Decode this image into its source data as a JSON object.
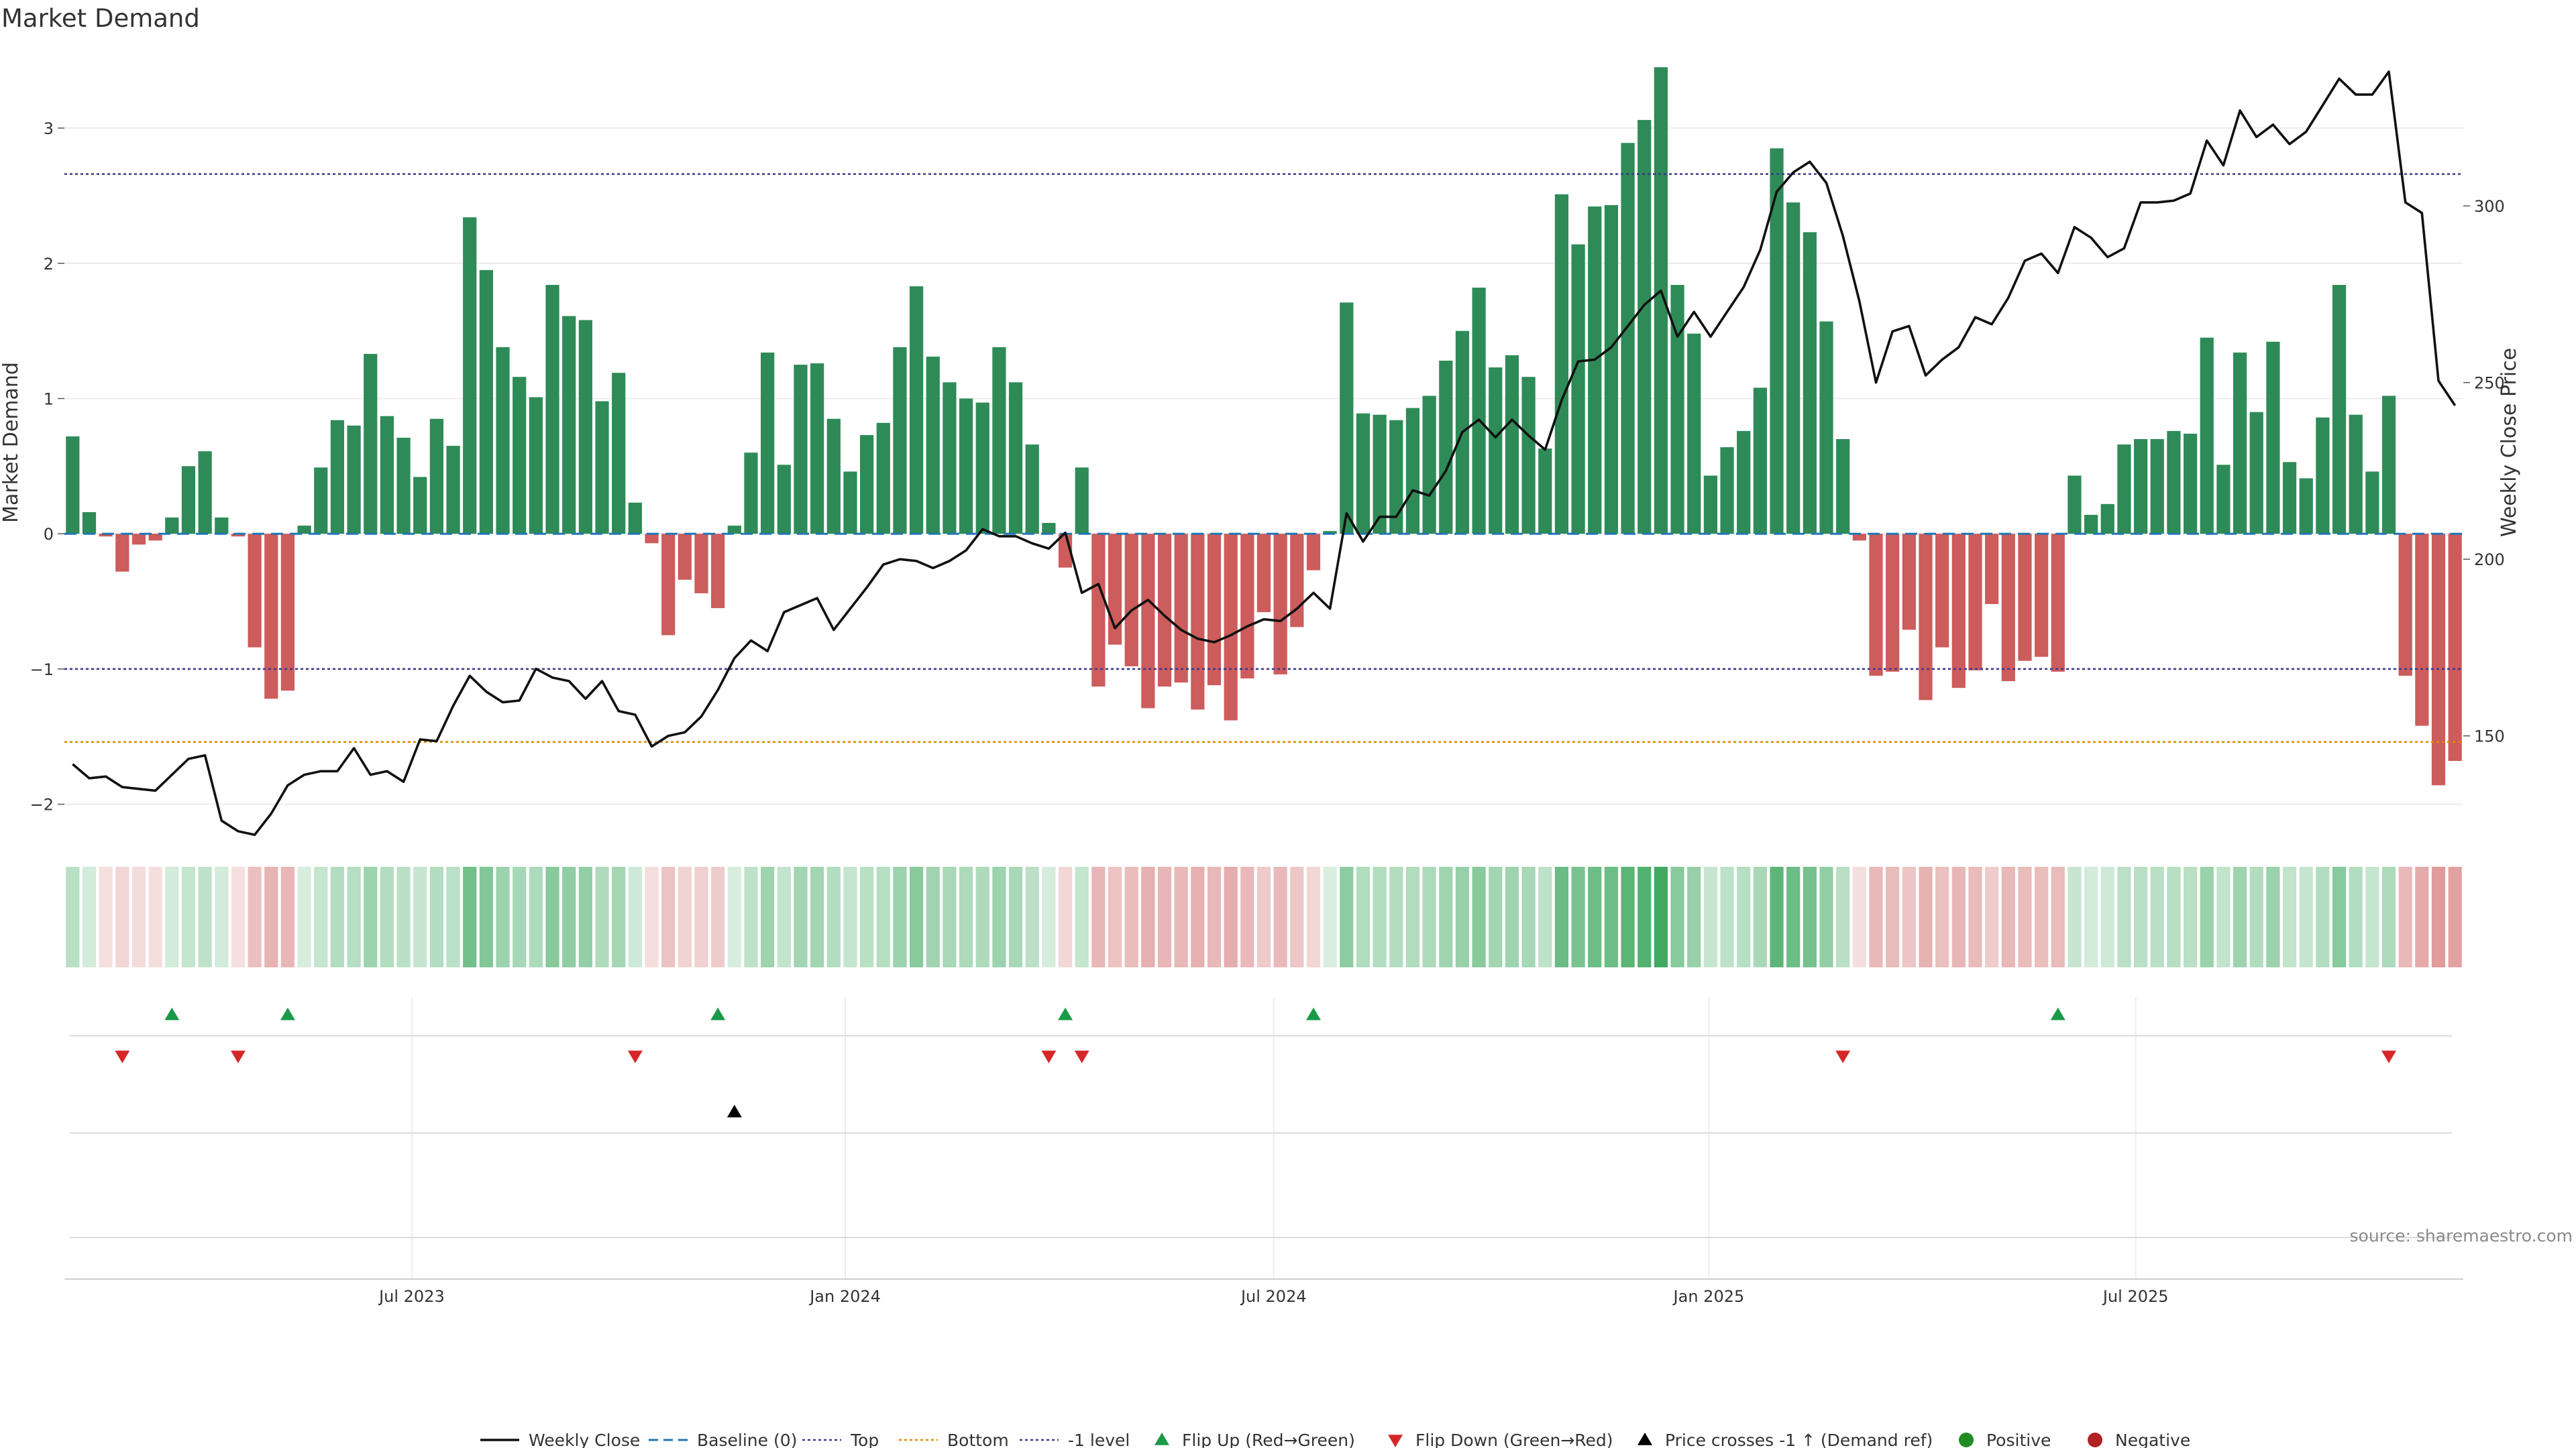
{
  "chart_data": {
    "type": "bar",
    "title": "Market Demand",
    "ylabel": "Market Demand",
    "y2label": "Weekly Close Price",
    "source": "source: sharemaestro.com",
    "ylim": [
      -2.2,
      3.6
    ],
    "y2lim": [
      123,
      345
    ],
    "y_ticks": [
      {
        "v": 3,
        "t": "3"
      },
      {
        "v": 2,
        "t": "2"
      },
      {
        "v": 1,
        "t": "1"
      },
      {
        "v": 0,
        "t": "0"
      },
      {
        "v": -1,
        "t": "−1"
      },
      {
        "v": -2,
        "t": "−2"
      }
    ],
    "y2_ticks": [
      {
        "v": 300,
        "t": "300"
      },
      {
        "v": 250,
        "t": "250"
      },
      {
        "v": 200,
        "t": "200"
      },
      {
        "v": 150,
        "t": "150"
      }
    ],
    "x_ticks": [
      {
        "i": 20.5,
        "t": "Jul 2023"
      },
      {
        "i": 46.7,
        "t": "Jan 2024"
      },
      {
        "i": 72.6,
        "t": "Jul 2024"
      },
      {
        "i": 98.9,
        "t": "Jan 2025"
      },
      {
        "i": 124.7,
        "t": "Jul 2025"
      }
    ],
    "levels": {
      "baseline": 0,
      "top": 2.66,
      "bottom": -1.54,
      "minus_one": -1
    },
    "demand": [
      0.72,
      0.16,
      -0.02,
      -0.28,
      -0.08,
      -0.05,
      0.12,
      0.5,
      0.61,
      0.12,
      -0.02,
      -0.84,
      -1.22,
      -1.16,
      0.06,
      0.49,
      0.84,
      0.8,
      1.33,
      0.87,
      0.71,
      0.42,
      0.85,
      0.65,
      2.34,
      1.95,
      1.38,
      1.16,
      1.01,
      1.84,
      1.61,
      1.58,
      0.98,
      1.19,
      0.23,
      -0.07,
      -0.75,
      -0.34,
      -0.44,
      -0.55,
      0.06,
      0.6,
      1.34,
      0.51,
      1.25,
      1.26,
      0.85,
      0.46,
      0.73,
      0.82,
      1.38,
      1.83,
      1.31,
      1.12,
      1.0,
      0.97,
      1.38,
      1.12,
      0.66,
      0.08,
      -0.25,
      0.49,
      -1.13,
      -0.82,
      -0.98,
      -1.29,
      -1.13,
      -1.1,
      -1.3,
      -1.12,
      -1.38,
      -1.07,
      -0.58,
      -1.04,
      -0.69,
      -0.27,
      0.02,
      1.71,
      0.89,
      0.88,
      0.84,
      0.93,
      1.02,
      1.28,
      1.5,
      1.82,
      1.23,
      1.32,
      1.16,
      0.63,
      2.51,
      2.14,
      2.42,
      2.43,
      2.89,
      3.06,
      3.45,
      1.84,
      1.48,
      0.43,
      0.64,
      0.76,
      1.08,
      2.85,
      2.45,
      2.23,
      1.57,
      0.7,
      -0.05,
      -1.05,
      -1.02,
      -0.71,
      -1.23,
      -0.84,
      -1.14,
      -1.01,
      -0.52,
      -1.09,
      -0.94,
      -0.91,
      -1.02,
      0.43,
      0.14,
      0.22,
      0.66,
      0.7,
      0.7,
      0.76,
      0.74,
      1.45,
      0.51,
      1.34,
      0.9,
      1.42,
      0.53,
      0.41,
      0.86,
      1.84,
      0.88,
      0.46,
      1.02,
      -1.05,
      -1.42,
      -1.86,
      -1.68
    ],
    "weekly_close": [
      142,
      138,
      138.5,
      135.5,
      135,
      134.5,
      139,
      143.5,
      144.5,
      126,
      123,
      122,
      128,
      136,
      139,
      140,
      140,
      146.5,
      139,
      140,
      137,
      149,
      148.5,
      158.5,
      167,
      162.5,
      159.5,
      160,
      169,
      166.5,
      165.5,
      160.5,
      165.5,
      157,
      156,
      147,
      150,
      151,
      155.5,
      163,
      172,
      177,
      174,
      185,
      187,
      189,
      180,
      186,
      192,
      198.5,
      200,
      199.5,
      197.5,
      199.5,
      202.5,
      208.5,
      206.5,
      206.5,
      204.5,
      203,
      207.5,
      190.5,
      193,
      180.5,
      185.5,
      188.5,
      184,
      180,
      177.5,
      176.5,
      178.5,
      181,
      183,
      182.5,
      186,
      190.5,
      186,
      213,
      205,
      212,
      212,
      219.5,
      218,
      225,
      236,
      239.5,
      234.5,
      239.5,
      235,
      231,
      245,
      256,
      256.5,
      260,
      266,
      272,
      276,
      263,
      270,
      263,
      270,
      277,
      287.5,
      304,
      309.5,
      312.5,
      306.5,
      291.5,
      273,
      250,
      264.5,
      266,
      252,
      256.5,
      260,
      268.5,
      266.5,
      274,
      284.5,
      286.5,
      281,
      294,
      291,
      285.5,
      288,
      301,
      301,
      301.5,
      303.5,
      318.5,
      311.5,
      327,
      319.5,
      323,
      317.5,
      321,
      328.5,
      336,
      331.5,
      331.5,
      338,
      301,
      298,
      250.5,
      243.5
    ],
    "flip_up": [
      6,
      13,
      39,
      60,
      75,
      120
    ],
    "flip_down": [
      3,
      10,
      34,
      59,
      61,
      107,
      140
    ],
    "price_cross": [
      40
    ]
  },
  "legend": [
    {
      "label": "Weekly Close",
      "icon": "line-solid-black"
    },
    {
      "label": "Baseline (0)",
      "icon": "line-dashed-blue"
    },
    {
      "label": "Top",
      "icon": "line-dotted-purple"
    },
    {
      "label": "Bottom",
      "icon": "line-dotted-orange"
    },
    {
      "label": "-1 level",
      "icon": "line-dotted-purple"
    },
    {
      "label": "Flip Up (Red→Green)",
      "icon": "triangle-up-green"
    },
    {
      "label": "Flip Down (Green→Red)",
      "icon": "triangle-down-red"
    },
    {
      "label": "Price crosses -1 ↑ (Demand ref)",
      "icon": "triangle-up-black"
    },
    {
      "label": "Positive",
      "icon": "dot-green"
    },
    {
      "label": "Negative",
      "icon": "dot-red"
    }
  ],
  "colors": {
    "positive": "#2e8b57",
    "negative": "#cd5c5c",
    "price": "#111111",
    "baseline": "#1f77b4",
    "top": "#3a3a8c",
    "bottom": "#e08a00",
    "minus_one": "#3a3a8c",
    "flip_up": "#1a9a48",
    "flip_down": "#d62728",
    "cross": "#000000",
    "legend_positive": "#228b22",
    "legend_negative": "#b22222"
  }
}
